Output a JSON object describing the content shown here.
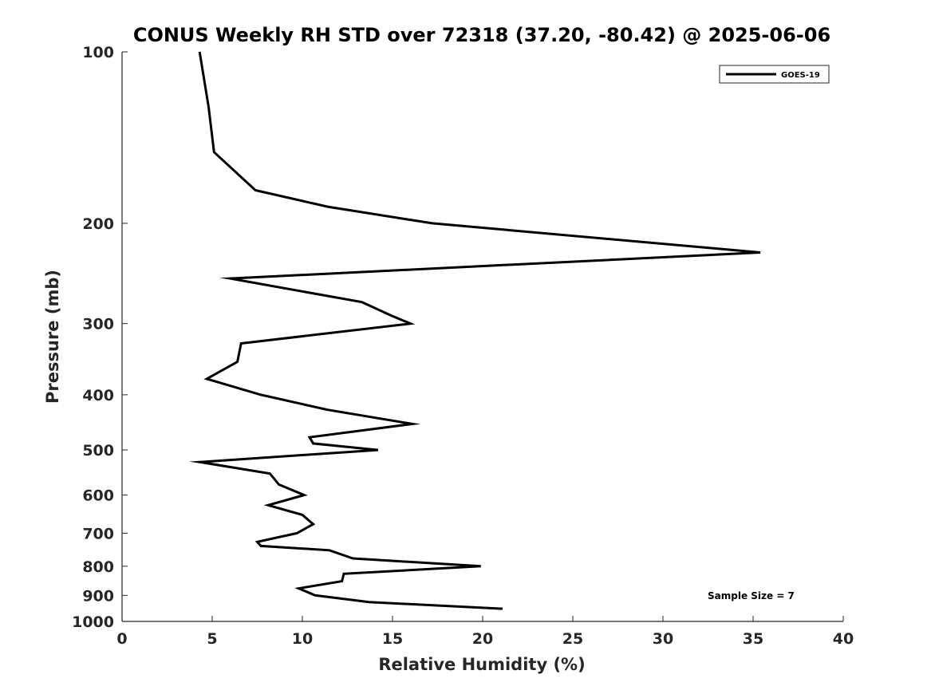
{
  "chart_data": {
    "type": "line",
    "title": "CONUS Weekly RH STD over 72318 (37.20, -80.42) @ 2025-06-06",
    "xlabel": "Relative Humidity (%)",
    "ylabel": "Pressure (mb)",
    "xlim": [
      0,
      40
    ],
    "ylim": [
      1000,
      100
    ],
    "y_scale": "log",
    "y_inverted": true,
    "grid": false,
    "x_ticks": [
      0,
      5,
      10,
      15,
      20,
      25,
      30,
      35,
      40
    ],
    "x_tick_labels": [
      "0",
      "5",
      "10",
      "15",
      "20",
      "25",
      "30",
      "35",
      "40"
    ],
    "y_ticks": [
      100,
      200,
      300,
      400,
      500,
      600,
      700,
      800,
      900,
      1000
    ],
    "y_tick_labels": [
      "100",
      "200",
      "300",
      "400",
      "500",
      "600",
      "700",
      "800",
      "900",
      "1000"
    ],
    "legend": {
      "placement": "top-right",
      "entries": [
        "GOES-19"
      ]
    },
    "annotations": [
      {
        "text": "Sample Size = 7",
        "placement": "bottom-right"
      }
    ],
    "series": [
      {
        "name": "GOES-19",
        "color": "#000000",
        "x": [
          4.3,
          4.8,
          5.1,
          7.4,
          11.4,
          17.2,
          35.4,
          6.0,
          13.3,
          14.9,
          16.0,
          6.6,
          6.4,
          4.7,
          7.7,
          11.4,
          16.1,
          10.4,
          10.6,
          14.2,
          4.3,
          8.2,
          8.7,
          10.1,
          8.1,
          10.0,
          10.6,
          9.7,
          7.5,
          7.7,
          11.5,
          12.8,
          19.9,
          12.3,
          12.2,
          9.8,
          10.7,
          13.7,
          21.1
        ],
        "y": [
          100,
          125,
          150,
          175,
          187,
          200,
          225,
          250,
          275,
          290,
          300,
          325,
          350,
          375,
          400,
          425,
          450,
          475,
          487,
          500,
          525,
          550,
          575,
          600,
          625,
          650,
          675,
          700,
          725,
          737,
          750,
          775,
          800,
          825,
          850,
          875,
          900,
          925,
          950
        ]
      }
    ]
  }
}
